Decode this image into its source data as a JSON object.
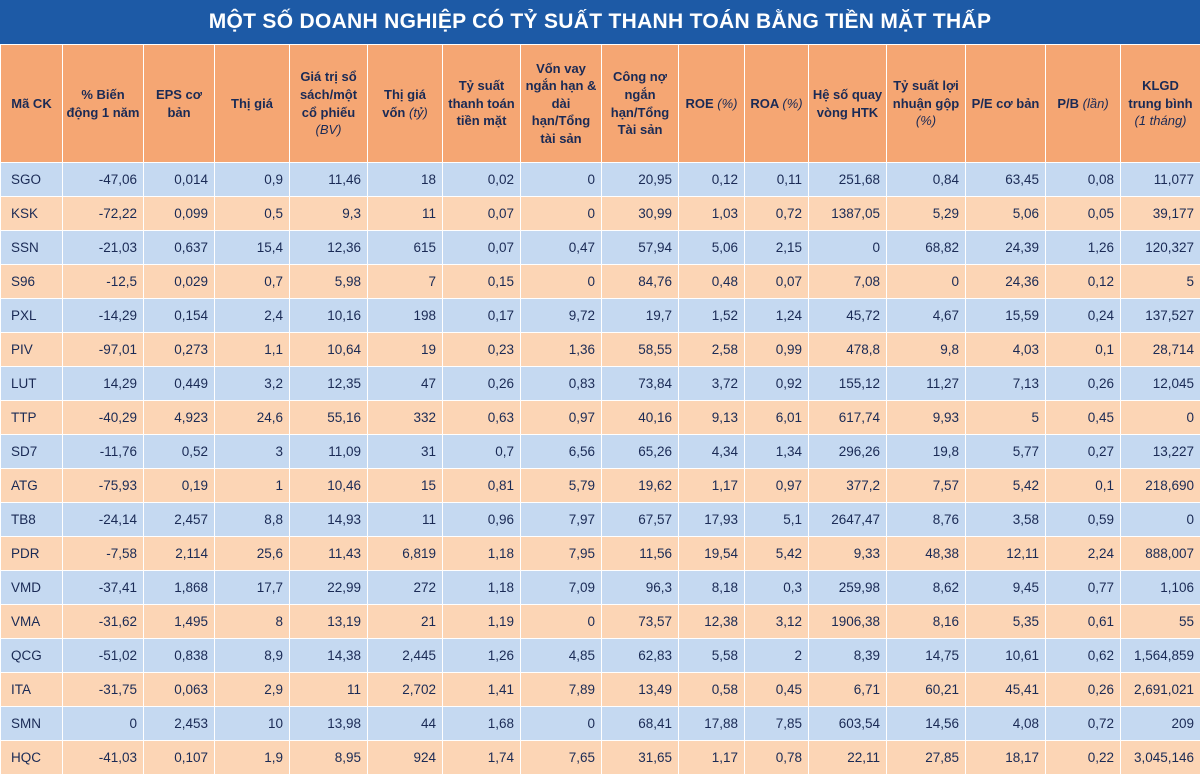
{
  "title": "MỘT SỐ DOANH NGHIỆP CÓ TỶ SUẤT THANH TOÁN BẰNG TIỀN MẶT THẤP",
  "table": {
    "header": [
      "Mã CK",
      "% Biến động 1 năm",
      "EPS cơ bản",
      "Thị giá",
      {
        "text": "Giá trị sổ sách/một cổ phiếu",
        "note": "(BV)"
      },
      {
        "text": "Thị giá vốn",
        "note": "(tỷ)"
      },
      "Tỷ suất thanh toán tiền mặt",
      "Vốn vay ngắn hạn & dài hạn/Tổng tài sản",
      "Công nợ ngắn hạn/Tổng Tài sản",
      {
        "text": "ROE",
        "note": "(%)"
      },
      {
        "text": "ROA",
        "note": "(%)"
      },
      "Hệ số quay vòng HTK",
      {
        "text": "Tỷ suất lợi nhuận gộp",
        "note": "(%)"
      },
      "P/E cơ bản",
      {
        "text": "P/B",
        "note": "(lần)"
      },
      {
        "text": "KLGD trung bình",
        "note": "(1 tháng)"
      }
    ],
    "rows": [
      [
        "SGO",
        "-47,06",
        "0,014",
        "0,9",
        "11,46",
        "18",
        "0,02",
        "0",
        "20,95",
        "0,12",
        "0,11",
        "251,68",
        "0,84",
        "63,45",
        "0,08",
        "11,077"
      ],
      [
        "KSK",
        "-72,22",
        "0,099",
        "0,5",
        "9,3",
        "11",
        "0,07",
        "0",
        "30,99",
        "1,03",
        "0,72",
        "1387,05",
        "5,29",
        "5,06",
        "0,05",
        "39,177"
      ],
      [
        "SSN",
        "-21,03",
        "0,637",
        "15,4",
        "12,36",
        "615",
        "0,07",
        "0,47",
        "57,94",
        "5,06",
        "2,15",
        "0",
        "68,82",
        "24,39",
        "1,26",
        "120,327"
      ],
      [
        "S96",
        "-12,5",
        "0,029",
        "0,7",
        "5,98",
        "7",
        "0,15",
        "0",
        "84,76",
        "0,48",
        "0,07",
        "7,08",
        "0",
        "24,36",
        "0,12",
        "5"
      ],
      [
        "PXL",
        "-14,29",
        "0,154",
        "2,4",
        "10,16",
        "198",
        "0,17",
        "9,72",
        "19,7",
        "1,52",
        "1,24",
        "45,72",
        "4,67",
        "15,59",
        "0,24",
        "137,527"
      ],
      [
        "PIV",
        "-97,01",
        "0,273",
        "1,1",
        "10,64",
        "19",
        "0,23",
        "1,36",
        "58,55",
        "2,58",
        "0,99",
        "478,8",
        "9,8",
        "4,03",
        "0,1",
        "28,714"
      ],
      [
        "LUT",
        "14,29",
        "0,449",
        "3,2",
        "12,35",
        "47",
        "0,26",
        "0,83",
        "73,84",
        "3,72",
        "0,92",
        "155,12",
        "11,27",
        "7,13",
        "0,26",
        "12,045"
      ],
      [
        "TTP",
        "-40,29",
        "4,923",
        "24,6",
        "55,16",
        "332",
        "0,63",
        "0,97",
        "40,16",
        "9,13",
        "6,01",
        "617,74",
        "9,93",
        "5",
        "0,45",
        "0"
      ],
      [
        "SD7",
        "-11,76",
        "0,52",
        "3",
        "11,09",
        "31",
        "0,7",
        "6,56",
        "65,26",
        "4,34",
        "1,34",
        "296,26",
        "19,8",
        "5,77",
        "0,27",
        "13,227"
      ],
      [
        "ATG",
        "-75,93",
        "0,19",
        "1",
        "10,46",
        "15",
        "0,81",
        "5,79",
        "19,62",
        "1,17",
        "0,97",
        "377,2",
        "7,57",
        "5,42",
        "0,1",
        "218,690"
      ],
      [
        "TB8",
        "-24,14",
        "2,457",
        "8,8",
        "14,93",
        "11",
        "0,96",
        "7,97",
        "67,57",
        "17,93",
        "5,1",
        "2647,47",
        "8,76",
        "3,58",
        "0,59",
        "0"
      ],
      [
        "PDR",
        "-7,58",
        "2,114",
        "25,6",
        "11,43",
        "6,819",
        "1,18",
        "7,95",
        "11,56",
        "19,54",
        "5,42",
        "9,33",
        "48,38",
        "12,11",
        "2,24",
        "888,007"
      ],
      [
        "VMD",
        "-37,41",
        "1,868",
        "17,7",
        "22,99",
        "272",
        "1,18",
        "7,09",
        "96,3",
        "8,18",
        "0,3",
        "259,98",
        "8,62",
        "9,45",
        "0,77",
        "1,106"
      ],
      [
        "VMA",
        "-31,62",
        "1,495",
        "8",
        "13,19",
        "21",
        "1,19",
        "0",
        "73,57",
        "12,38",
        "3,12",
        "1906,38",
        "8,16",
        "5,35",
        "0,61",
        "55"
      ],
      [
        "QCG",
        "-51,02",
        "0,838",
        "8,9",
        "14,38",
        "2,445",
        "1,26",
        "4,85",
        "62,83",
        "5,58",
        "2",
        "8,39",
        "14,75",
        "10,61",
        "0,62",
        "1,564,859"
      ],
      [
        "ITA",
        "-31,75",
        "0,063",
        "2,9",
        "11",
        "2,702",
        "1,41",
        "7,89",
        "13,49",
        "0,58",
        "0,45",
        "6,71",
        "60,21",
        "45,41",
        "0,26",
        "2,691,021"
      ],
      [
        "SMN",
        "0",
        "2,453",
        "10",
        "13,98",
        "44",
        "1,68",
        "0",
        "68,41",
        "17,88",
        "7,85",
        "603,54",
        "14,56",
        "4,08",
        "0,72",
        "209"
      ],
      [
        "HQC",
        "-41,03",
        "0,107",
        "1,9",
        "8,95",
        "924",
        "1,74",
        "7,65",
        "31,65",
        "1,17",
        "0,78",
        "22,11",
        "27,85",
        "18,17",
        "0,22",
        "3,045,146"
      ]
    ]
  }
}
